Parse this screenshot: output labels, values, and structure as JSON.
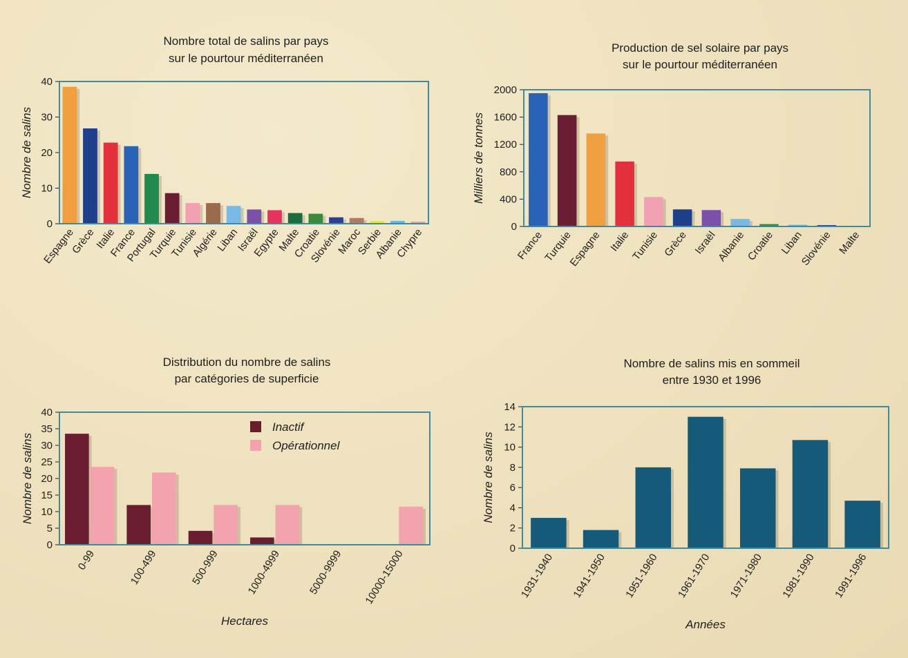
{
  "chart_data": [
    {
      "type": "bar",
      "title": [
        "Nombre total de salins par pays",
        "sur le pourtour méditerranéen"
      ],
      "xlabel": "",
      "ylabel": "Nombre de salins",
      "ylim": [
        0,
        40
      ],
      "yticks": [
        0,
        10,
        20,
        30,
        40
      ],
      "grid": false,
      "categories": [
        "Espagne",
        "Grèce",
        "Italie",
        "France",
        "Portugal",
        "Turquie",
        "Tunisie",
        "Algérie",
        "Liban",
        "Israël",
        "Egypte",
        "Malte",
        "Croatie",
        "Slovénie",
        "Maroc",
        "Serbie",
        "Albanie",
        "Chypre"
      ],
      "values": [
        38.5,
        26.8,
        22.8,
        21.8,
        14,
        8.6,
        5.8,
        5.8,
        5,
        4,
        3.8,
        3,
        2.8,
        1.8,
        1.6,
        0.7,
        0.8,
        0.6
      ],
      "colors": [
        "#f0a040",
        "#1e3f8a",
        "#e2303c",
        "#2a62b8",
        "#1f8a4c",
        "#6b1d36",
        "#f0a0b0",
        "#9a6a4c",
        "#7ab8e6",
        "#7a50a8",
        "#e5325e",
        "#1a6b3e",
        "#3a8a3e",
        "#2d3f90",
        "#b07a68",
        "#e8e030",
        "#6ab8e0",
        "#d8a6a8"
      ]
    },
    {
      "type": "bar",
      "title": [
        "Production de sel solaire par pays",
        "sur le pourtour méditerranéen"
      ],
      "xlabel": "",
      "ylabel": "Milliers de tonnes",
      "ylim": [
        0,
        2000
      ],
      "yticks": [
        0,
        400,
        800,
        1200,
        1600,
        2000
      ],
      "grid": false,
      "categories": [
        "France",
        "Turquie",
        "Espagne",
        "Italie",
        "Tunisie",
        "Grèce",
        "Israël",
        "Albanie",
        "Croatie",
        "Liban",
        "Slovénie",
        "Malte"
      ],
      "values": [
        1950,
        1630,
        1360,
        950,
        430,
        250,
        240,
        110,
        35,
        25,
        20,
        5
      ],
      "colors": [
        "#2a62b8",
        "#6b1d36",
        "#f0a040",
        "#e2303c",
        "#f0a0b0",
        "#1e3f8a",
        "#7a50a8",
        "#7ab8e6",
        "#3a8a3e",
        "#6ab8e0",
        "#2d3f90",
        "#c8c0a8"
      ]
    },
    {
      "type": "bar",
      "title": [
        "Distribution du nombre de salins",
        "par catégories de superficie"
      ],
      "xlabel": "Hectares",
      "ylabel": "Nombre de salins",
      "ylim": [
        0,
        40
      ],
      "yticks": [
        0,
        5,
        10,
        15,
        20,
        25,
        30,
        35,
        40
      ],
      "grid": false,
      "legend": "top-center",
      "categories": [
        "0-99",
        "100-499",
        "500-999",
        "1000-4999",
        "5000-9999",
        "10000-15000"
      ],
      "series": [
        {
          "name": "Inactif",
          "color": "#6b1d30",
          "values": [
            33.5,
            12,
            4.2,
            2.2,
            0,
            0
          ]
        },
        {
          "name": "Opérationnel",
          "color": "#f2a3ad",
          "values": [
            23.5,
            21.8,
            12,
            12,
            0,
            11.5
          ]
        }
      ]
    },
    {
      "type": "bar",
      "title": [
        "Nombre de salins mis en sommeil",
        "entre 1930 et 1996"
      ],
      "xlabel": "Années",
      "ylabel": "Nombre de salins",
      "ylim": [
        0,
        14
      ],
      "yticks": [
        0,
        2,
        4,
        6,
        8,
        10,
        12,
        14
      ],
      "grid": false,
      "categories": [
        "1931-1940",
        "1941-1950",
        "1951-1960",
        "1961-1970",
        "1971-1980",
        "1981-1990",
        "1991-1996"
      ],
      "values": [
        3,
        1.8,
        8,
        13,
        7.9,
        10.7,
        4.7
      ],
      "colors": [
        "#155a78"
      ]
    }
  ]
}
